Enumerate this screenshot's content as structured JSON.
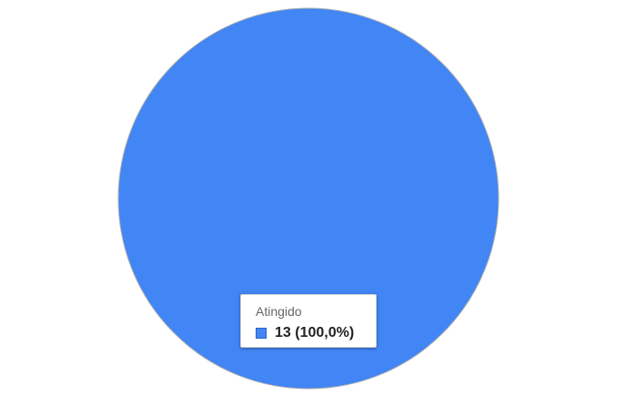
{
  "chart_data": {
    "type": "pie",
    "title": "",
    "slices": [
      {
        "label": "Atingido",
        "value": 13,
        "percent": 100.0,
        "color": "#4285f4"
      }
    ],
    "legend": "none"
  },
  "tooltip": {
    "title": "Atingido",
    "value_text": "13 (100,0%)"
  }
}
